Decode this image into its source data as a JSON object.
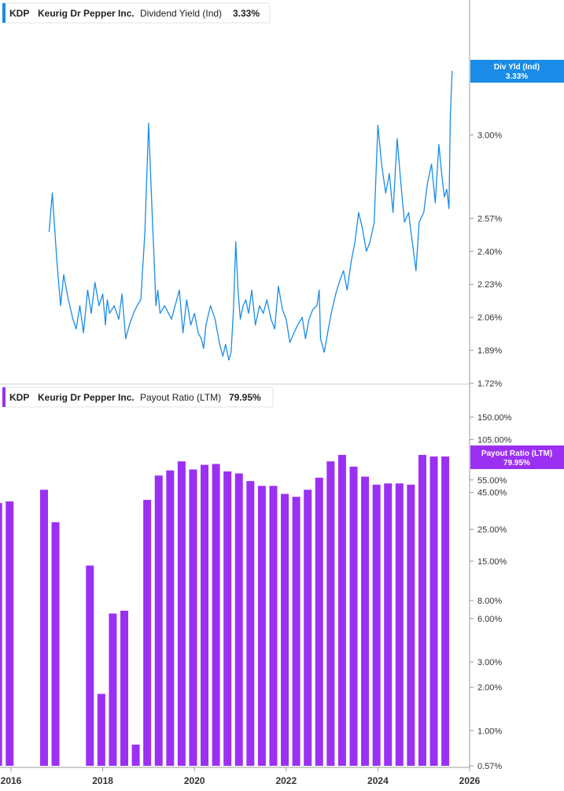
{
  "chart_data": [
    {
      "type": "line",
      "legend": {
        "ticker": "KDP",
        "company": "Keurig Dr Pepper Inc.",
        "metric": "Dividend Yield (Ind)",
        "value": "3.33%"
      },
      "badge": {
        "line1": "Div Yld (Ind)",
        "line2": "3.33%"
      },
      "color": "#1a8ce8",
      "ylim": [
        1.72,
        3.33
      ],
      "y_ticks": [
        "3.00%",
        "2.57%",
        "2.40%",
        "2.23%",
        "2.06%",
        "1.89%",
        "1.72%"
      ],
      "y_tick_values": [
        3.0,
        2.57,
        2.4,
        2.23,
        2.06,
        1.89,
        1.72
      ],
      "series": [
        {
          "x": [
            2016.83,
            2016.9,
            2017.0,
            2017.08,
            2017.15,
            2017.25,
            2017.35,
            2017.42,
            2017.5,
            2017.58,
            2017.67,
            2017.75,
            2017.83,
            2017.92,
            2018.0,
            2018.06,
            2018.08,
            2018.1,
            2018.15,
            2018.25,
            2018.35,
            2018.42,
            2018.5,
            2018.58,
            2018.67,
            2018.75,
            2018.83,
            2018.92,
            2019.0,
            2019.08,
            2019.13,
            2019.16,
            2019.2,
            2019.25,
            2019.35,
            2019.5,
            2019.67,
            2019.75,
            2019.83,
            2019.92,
            2020.0,
            2020.08,
            2020.15,
            2020.2,
            2020.25,
            2020.35,
            2020.45,
            2020.55,
            2020.62,
            2020.68,
            2020.75,
            2020.8,
            2020.85,
            2020.9,
            2020.95,
            2021.0,
            2021.06,
            2021.12,
            2021.18,
            2021.25,
            2021.33,
            2021.42,
            2021.5,
            2021.58,
            2021.67,
            2021.75,
            2021.83,
            2021.92,
            2022.0,
            2022.08,
            2022.17,
            2022.25,
            2022.35,
            2022.42,
            2022.5,
            2022.58,
            2022.67,
            2022.72,
            2022.75,
            2022.83,
            2022.92,
            2023.0,
            2023.08,
            2023.17,
            2023.25,
            2023.33,
            2023.42,
            2023.5,
            2023.58,
            2023.66,
            2023.75,
            2023.83,
            2023.92,
            2024.0,
            2024.08,
            2024.17,
            2024.25,
            2024.33,
            2024.42,
            2024.5,
            2024.58,
            2024.67,
            2024.72,
            2024.75,
            2024.83,
            2024.9,
            2025.0,
            2025.08,
            2025.17,
            2025.25,
            2025.33,
            2025.4,
            2025.45,
            2025.5,
            2025.55,
            2025.58,
            2025.62
          ],
          "y": [
            2.5,
            2.7,
            2.35,
            2.12,
            2.28,
            2.15,
            2.05,
            2.0,
            2.12,
            1.98,
            2.2,
            2.08,
            2.24,
            2.12,
            2.18,
            2.02,
            2.1,
            2.15,
            2.08,
            2.12,
            2.05,
            2.18,
            1.95,
            2.02,
            2.08,
            2.12,
            2.15,
            2.5,
            3.06,
            2.58,
            2.3,
            2.12,
            2.2,
            2.08,
            2.12,
            2.05,
            2.2,
            1.98,
            2.15,
            2.02,
            2.08,
            1.98,
            1.95,
            1.9,
            2.02,
            2.12,
            2.05,
            1.92,
            1.86,
            1.92,
            1.84,
            1.88,
            2.1,
            2.45,
            2.2,
            2.05,
            2.12,
            2.15,
            2.08,
            2.2,
            2.02,
            2.12,
            2.08,
            2.15,
            2.05,
            2.0,
            2.22,
            2.1,
            2.05,
            1.93,
            1.98,
            2.02,
            2.06,
            1.95,
            2.05,
            2.1,
            2.12,
            2.2,
            1.95,
            1.88,
            2.0,
            2.1,
            2.18,
            2.25,
            2.3,
            2.2,
            2.35,
            2.45,
            2.6,
            2.52,
            2.4,
            2.45,
            2.55,
            3.05,
            2.85,
            2.7,
            2.8,
            2.6,
            2.98,
            2.75,
            2.55,
            2.6,
            2.5,
            2.45,
            2.3,
            2.55,
            2.6,
            2.75,
            2.85,
            2.65,
            2.95,
            2.78,
            2.68,
            2.72,
            2.62,
            3.1,
            3.33
          ]
        }
      ]
    },
    {
      "type": "bar",
      "legend": {
        "ticker": "KDP",
        "company": "Keurig Dr Pepper Inc.",
        "metric": "Payout Ratio (LTM)",
        "value": "79.95%"
      },
      "badge": {
        "line1": "Payout Ratio (LTM)",
        "line2": "79.95%"
      },
      "color": "#9b30f2",
      "scale": "log",
      "ylim": [
        0.57,
        150
      ],
      "y_ticks": [
        "150.00%",
        "105.00%",
        "55.00%",
        "45.00%",
        "25.00%",
        "15.00%",
        "8.00%",
        "6.00%",
        "3.00%",
        "2.00%",
        "1.00%",
        "0.57%"
      ],
      "y_tick_values": [
        150,
        105,
        55,
        45,
        25,
        15,
        8,
        6,
        3,
        2,
        1,
        0.57
      ],
      "x_ticks": [
        "2016",
        "2018",
        "2020",
        "2022",
        "2024",
        "2026"
      ],
      "x_tick_values": [
        2016,
        2018,
        2020,
        2022,
        2024,
        2026
      ],
      "x_range": [
        2016,
        2026
      ],
      "bars": [
        {
          "x": 2015.72,
          "value": 38
        },
        {
          "x": 2015.97,
          "value": 39
        },
        {
          "x": 2016.72,
          "value": 47
        },
        {
          "x": 2016.97,
          "value": 28
        },
        {
          "x": 2017.72,
          "value": 14
        },
        {
          "x": 2017.97,
          "value": 1.8
        },
        {
          "x": 2018.22,
          "value": 6.5
        },
        {
          "x": 2018.47,
          "value": 6.8
        },
        {
          "x": 2018.72,
          "value": 0.8
        },
        {
          "x": 2018.97,
          "value": 40
        },
        {
          "x": 2019.22,
          "value": 59
        },
        {
          "x": 2019.47,
          "value": 64
        },
        {
          "x": 2019.72,
          "value": 74
        },
        {
          "x": 2019.97,
          "value": 65
        },
        {
          "x": 2020.22,
          "value": 70
        },
        {
          "x": 2020.47,
          "value": 71
        },
        {
          "x": 2020.72,
          "value": 63
        },
        {
          "x": 2020.97,
          "value": 61
        },
        {
          "x": 2021.22,
          "value": 54
        },
        {
          "x": 2021.47,
          "value": 50
        },
        {
          "x": 2021.72,
          "value": 50
        },
        {
          "x": 2021.97,
          "value": 44
        },
        {
          "x": 2022.22,
          "value": 42
        },
        {
          "x": 2022.47,
          "value": 47
        },
        {
          "x": 2022.72,
          "value": 57
        },
        {
          "x": 2022.97,
          "value": 74
        },
        {
          "x": 2023.22,
          "value": 82
        },
        {
          "x": 2023.47,
          "value": 68
        },
        {
          "x": 2023.72,
          "value": 58
        },
        {
          "x": 2023.97,
          "value": 51
        },
        {
          "x": 2024.22,
          "value": 52
        },
        {
          "x": 2024.47,
          "value": 52
        },
        {
          "x": 2024.72,
          "value": 51
        },
        {
          "x": 2024.97,
          "value": 82
        },
        {
          "x": 2025.22,
          "value": 80
        },
        {
          "x": 2025.47,
          "value": 79.95
        }
      ]
    }
  ]
}
